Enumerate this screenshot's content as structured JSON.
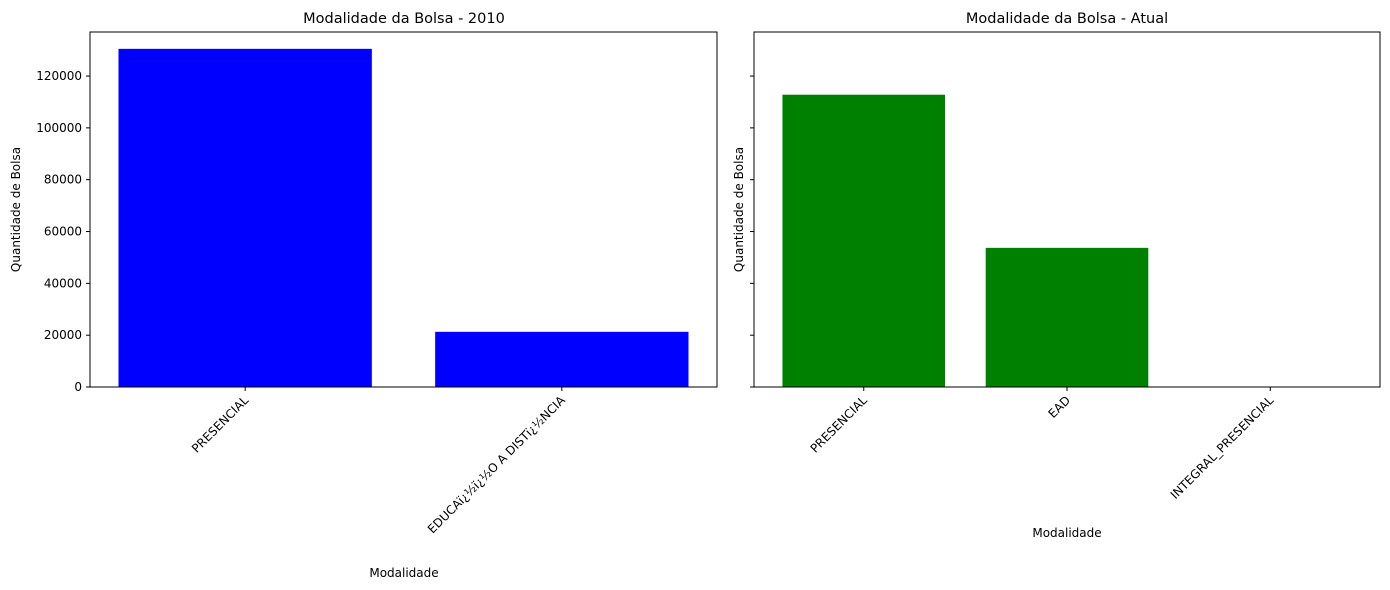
{
  "chart_data": [
    {
      "type": "bar",
      "title": "Modalidade da Bolsa - 2010",
      "xlabel": "Modalidade",
      "ylabel": "Quantidade de Bolsa",
      "categories": [
        "PRESENCIAL",
        "EDUCAï¿½ï¿½O A DISTï¿½NCIA"
      ],
      "values": [
        130500,
        21300
      ],
      "ylim": [
        0,
        137000
      ],
      "yticks": [
        0,
        20000,
        40000,
        60000,
        80000,
        100000,
        120000
      ],
      "ytick_labels": [
        "0",
        "20000",
        "40000",
        "60000",
        "80000",
        "100000",
        "120000"
      ],
      "color": "#0000ff",
      "grid": false
    },
    {
      "type": "bar",
      "title": "Modalidade da Bolsa - Atual",
      "xlabel": "Modalidade",
      "ylabel": "Quantidade de Bolsa",
      "categories": [
        "PRESENCIAL",
        "EAD",
        "INTEGRAL_PRESENCIAL"
      ],
      "values": [
        112800,
        53700,
        20
      ],
      "ylim": [
        0,
        137000
      ],
      "yticks": [
        0,
        20000,
        40000,
        60000,
        80000,
        100000,
        120000
      ],
      "ytick_labels": [
        "",
        "",
        "",
        "",
        "",
        "",
        ""
      ],
      "color": "#008000",
      "grid": false
    }
  ]
}
